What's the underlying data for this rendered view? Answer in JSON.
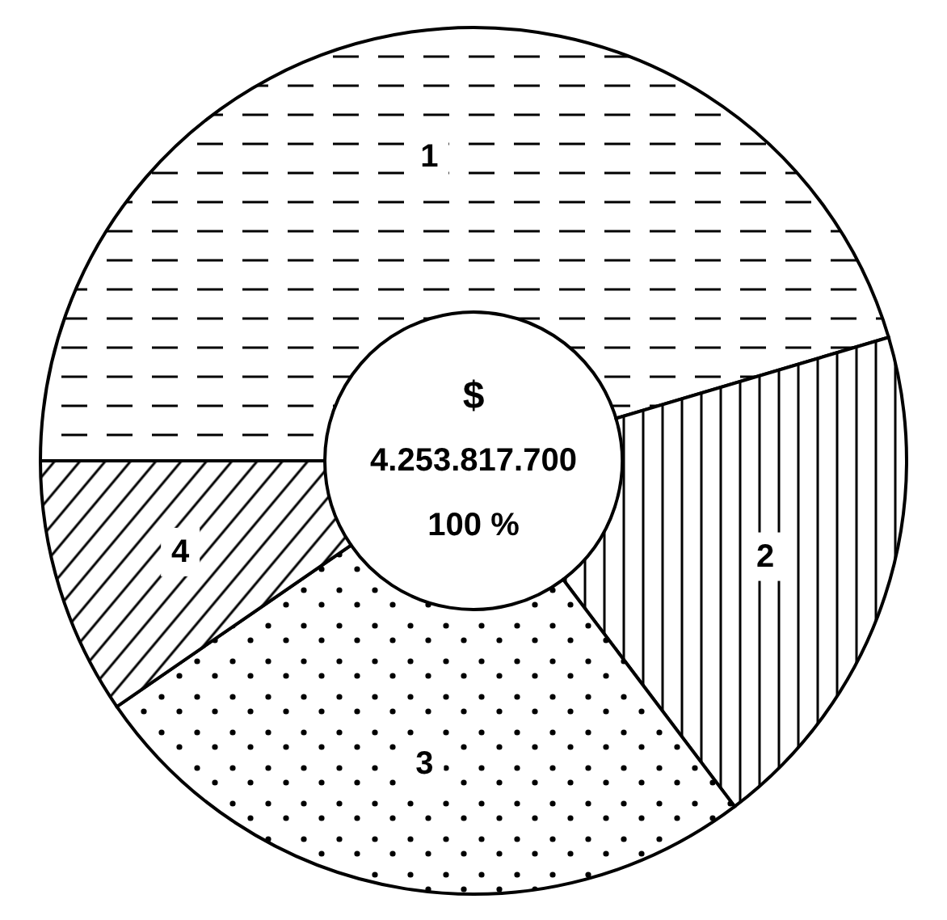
{
  "chart_data": {
    "type": "donut",
    "categories": [
      "1",
      "2",
      "3",
      "4"
    ],
    "values": [
      45.4,
      19.3,
      25.7,
      9.6
    ],
    "colors": [
      "#000000",
      "#000000",
      "#000000",
      "#000000"
    ],
    "annotations": [
      "$",
      "4.253.817.700",
      "100 %"
    ]
  }
}
